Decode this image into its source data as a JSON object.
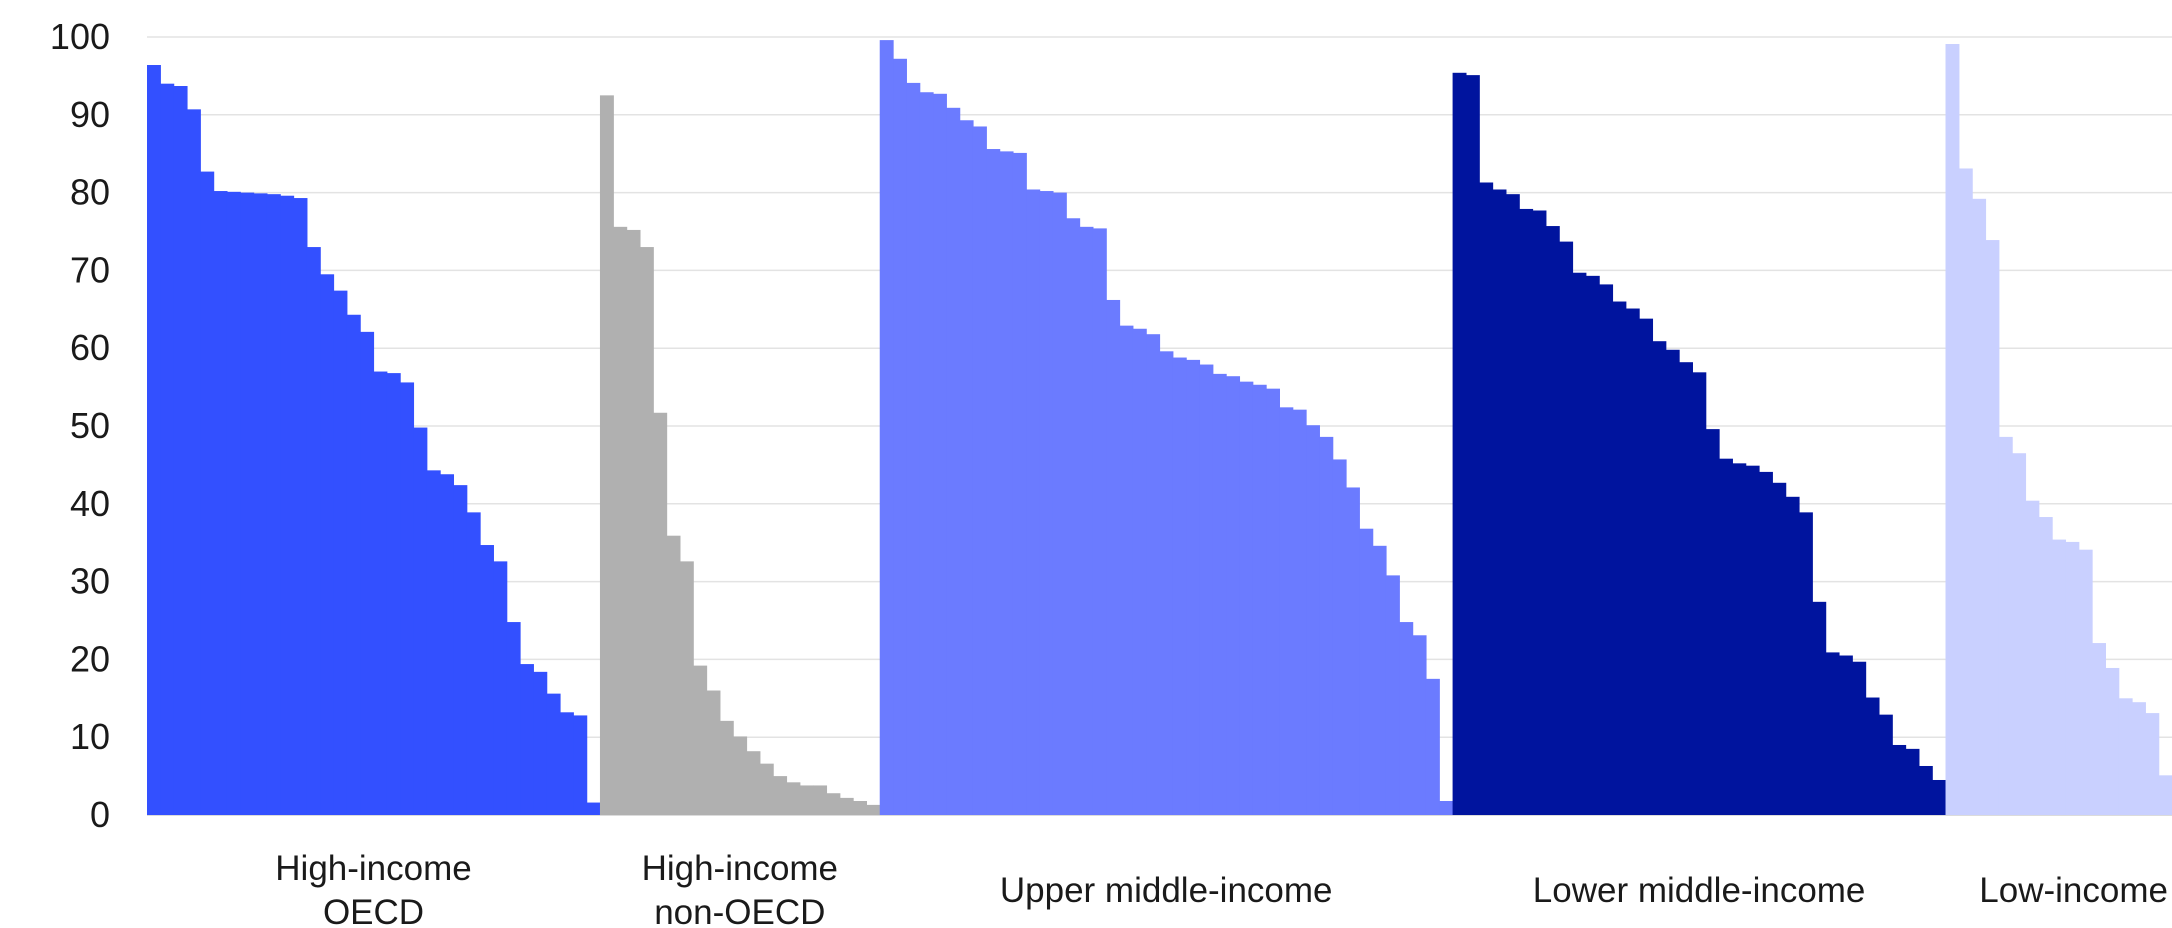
{
  "chart_data": {
    "type": "bar",
    "ylim": [
      0,
      100
    ],
    "y_ticks": [
      "0",
      "10",
      "20",
      "30",
      "40",
      "50",
      "60",
      "70",
      "80",
      "90",
      "100"
    ],
    "grid": true,
    "groups": [
      {
        "label_lines": [
          "High-income",
          "OECD"
        ],
        "color": "#3350ff",
        "values": [
          96.4,
          94.0,
          93.7,
          90.7,
          82.7,
          80.2,
          80.1,
          80.0,
          79.9,
          79.8,
          79.6,
          79.3,
          73.0,
          69.5,
          67.4,
          64.3,
          62.1,
          57.0,
          56.8,
          55.6,
          49.8,
          44.3,
          43.8,
          42.4,
          38.9,
          34.7,
          32.6,
          24.8,
          19.4,
          18.4,
          15.6,
          13.2,
          12.8,
          1.6
        ]
      },
      {
        "label_lines": [
          "High-income",
          "non-OECD"
        ],
        "color": "#b0b0b0",
        "values": [
          92.5,
          75.6,
          75.2,
          73.0,
          51.7,
          35.9,
          32.6,
          19.2,
          16.0,
          12.1,
          10.1,
          8.2,
          6.6,
          5.0,
          4.2,
          3.8,
          3.8,
          2.8,
          2.2,
          1.8,
          1.3
        ]
      },
      {
        "label_lines": [
          "Upper middle-income"
        ],
        "color": "#6b7bff",
        "values": [
          99.6,
          97.2,
          94.1,
          92.9,
          92.7,
          90.9,
          89.3,
          88.5,
          85.6,
          85.3,
          85.1,
          80.4,
          80.2,
          80.0,
          76.7,
          75.6,
          75.4,
          66.2,
          62.9,
          62.5,
          61.8,
          59.6,
          58.8,
          58.5,
          57.9,
          56.7,
          56.4,
          55.7,
          55.3,
          54.8,
          52.4,
          52.1,
          50.1,
          48.6,
          45.7,
          42.1,
          36.8,
          34.6,
          30.8,
          24.8,
          23.1,
          17.5,
          1.8
        ]
      },
      {
        "label_lines": [
          "Lower middle-income"
        ],
        "color": "#00149e",
        "values": [
          95.4,
          95.1,
          81.3,
          80.4,
          79.8,
          77.9,
          77.7,
          75.7,
          73.7,
          69.7,
          69.3,
          68.2,
          66.0,
          65.1,
          63.8,
          60.9,
          59.8,
          58.2,
          56.9,
          49.6,
          45.8,
          45.2,
          44.9,
          44.1,
          42.7,
          40.9,
          38.9,
          27.4,
          20.9,
          20.5,
          19.7,
          15.1,
          12.9,
          9.0,
          8.5,
          6.3,
          4.5
        ]
      },
      {
        "label_lines": [
          "Low-income"
        ],
        "color": "#c9d0ff",
        "values": [
          99.1,
          83.1,
          79.2,
          73.9,
          48.6,
          46.5,
          40.4,
          38.3,
          35.4,
          35.1,
          34.1,
          22.1,
          18.9,
          15.0,
          14.5,
          13.1,
          5.1
        ]
      }
    ]
  }
}
